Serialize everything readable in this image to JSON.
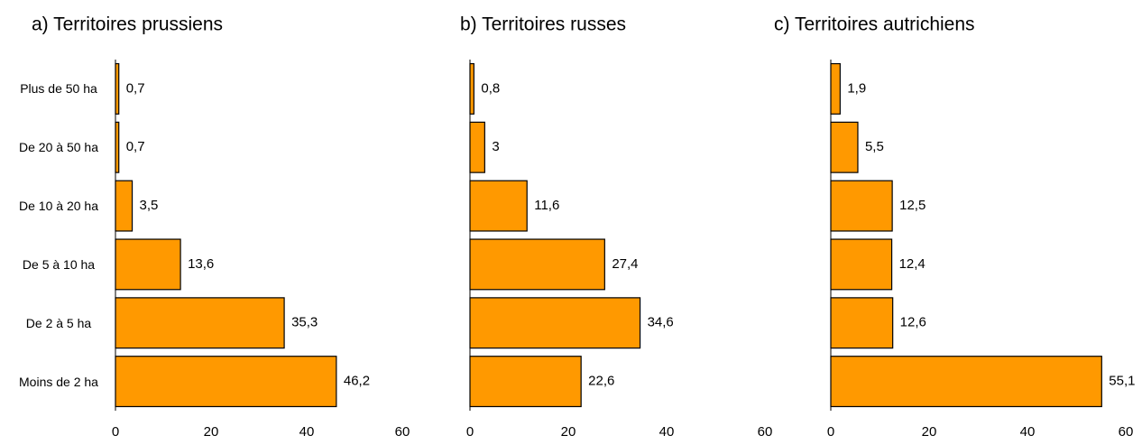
{
  "chart_data": [
    {
      "type": "barh",
      "title": "a) Territoires prussiens",
      "categories": [
        "Plus de 50 ha",
        "De 20 à 50 ha",
        "De 10 à 20 ha",
        "De 5 à 10 ha",
        "De 2 à 5 ha",
        "Moins de 2 ha"
      ],
      "values": [
        0.7,
        0.7,
        3.5,
        13.6,
        35.3,
        46.2
      ],
      "value_labels": [
        "0,7",
        "0,7",
        "3,5",
        "13,6",
        "35,3",
        "46,2"
      ],
      "color": "#ff9900",
      "xlim": [
        0,
        60
      ],
      "xticks": [
        0,
        20,
        40,
        60
      ]
    },
    {
      "type": "barh",
      "title": "b) Territoires russes",
      "values": [
        0.8,
        3,
        11.6,
        27.4,
        34.6,
        22.6
      ],
      "value_labels": [
        "0,8",
        "3",
        "11,6",
        "27,4",
        "34,6",
        "22,6"
      ],
      "color": "#ff9900",
      "xlim": [
        0,
        60
      ],
      "xticks": [
        0,
        20,
        40,
        60
      ]
    },
    {
      "type": "barh",
      "title": "c) Territoires autrichiens",
      "values": [
        1.9,
        5.5,
        12.5,
        12.4,
        12.6,
        55.1
      ],
      "value_labels": [
        "1,9",
        "5,5",
        "12,5",
        "12,4",
        "12,6",
        "55,1"
      ],
      "color": "#ff9900",
      "xlim": [
        0,
        60
      ],
      "xticks": [
        0,
        20,
        40,
        60
      ]
    }
  ]
}
